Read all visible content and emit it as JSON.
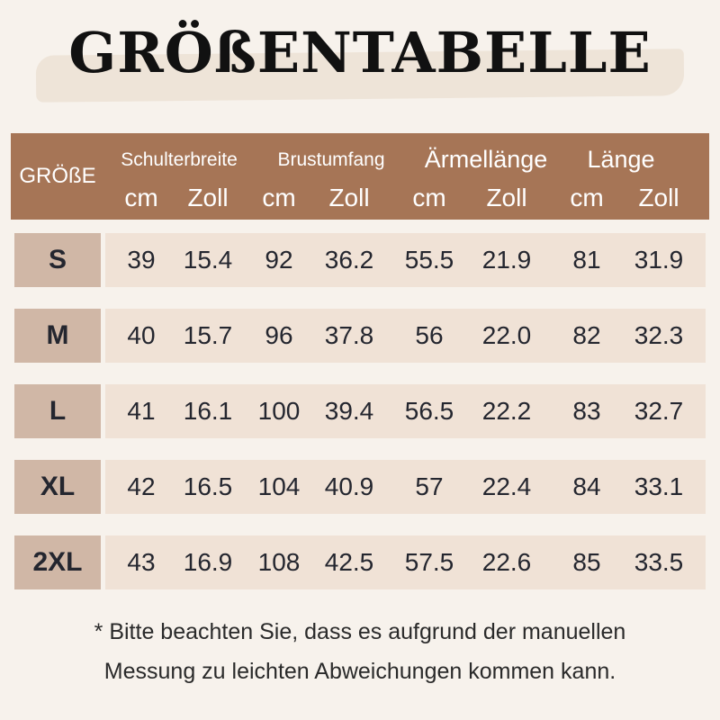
{
  "title": "GRÖßENTABELLE",
  "header": {
    "size_label": "GRÖßE",
    "groups": [
      "Schulterbreite",
      "Brustumfang",
      "Ärmellänge",
      "Länge"
    ],
    "units": [
      "cm",
      "Zoll",
      "cm",
      "Zoll",
      "cm",
      "Zoll",
      "cm",
      "Zoll"
    ]
  },
  "rows": [
    {
      "size": "S",
      "values": [
        "39",
        "15.4",
        "92",
        "36.2",
        "55.5",
        "21.9",
        "81",
        "31.9"
      ]
    },
    {
      "size": "M",
      "values": [
        "40",
        "15.7",
        "96",
        "37.8",
        "56",
        "22.0",
        "82",
        "32.3"
      ]
    },
    {
      "size": "L",
      "values": [
        "41",
        "16.1",
        "100",
        "39.4",
        "56.5",
        "22.2",
        "83",
        "32.7"
      ]
    },
    {
      "size": "XL",
      "values": [
        "42",
        "16.5",
        "104",
        "40.9",
        "57",
        "22.4",
        "84",
        "33.1"
      ]
    },
    {
      "size": "2XL",
      "values": [
        "43",
        "16.9",
        "108",
        "42.5",
        "57.5",
        "22.6",
        "85",
        "33.5"
      ]
    }
  ],
  "note": [
    "* Bitte beachten Sie, dass es aufgrund der manuellen",
    "Messung zu leichten Abweichungen kommen kann."
  ],
  "colors": {
    "header": "#a67556",
    "size_cell": "#d0b7a6",
    "row": "#f0e2d6",
    "background": "#f7f2ec"
  }
}
